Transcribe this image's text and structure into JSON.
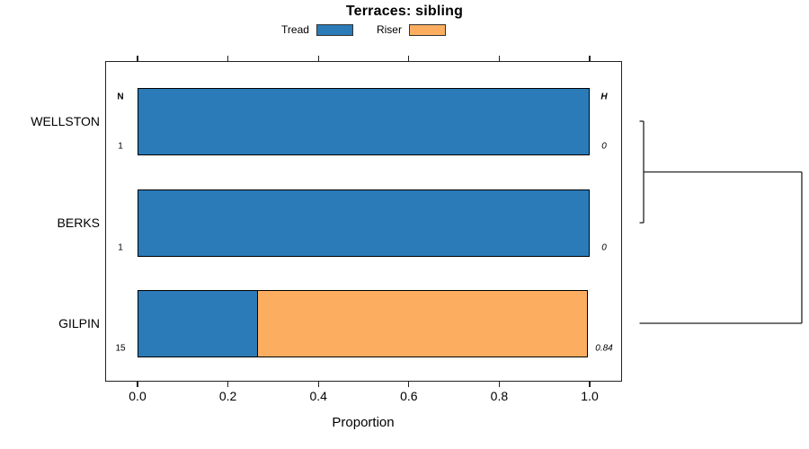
{
  "title": "Terraces: sibling",
  "legend": [
    {
      "label": "Tread",
      "color": "#2B7BB9"
    },
    {
      "label": "Riser",
      "color": "#FCAD60"
    }
  ],
  "columns": {
    "n_header": "N",
    "h_header": "H"
  },
  "axis": {
    "label": "Proportion",
    "tick_labels": [
      "0.0",
      "0.2",
      "0.4",
      "0.6",
      "0.8",
      "1.0"
    ],
    "tick_values": [
      0,
      0.2,
      0.4,
      0.6,
      0.8,
      1.0
    ],
    "range": [
      0,
      1
    ]
  },
  "colors": {
    "tread": "#2B7BB9",
    "riser": "#FCAD60",
    "line": "#222222"
  },
  "chart_data": {
    "type": "bar",
    "orientation": "horizontal",
    "stacked": true,
    "title": "Terraces: sibling",
    "xlabel": "Proportion",
    "xlim": [
      0,
      1
    ],
    "grid": false,
    "legend_position": "top",
    "categories": [
      "WELLSTON",
      "BERKS",
      "GILPIN"
    ],
    "series": [
      {
        "name": "Tread",
        "color": "#2B7BB9",
        "values": [
          1.0,
          1.0,
          0.267
        ]
      },
      {
        "name": "Riser",
        "color": "#FCAD60",
        "values": [
          0.0,
          0.0,
          0.733
        ]
      }
    ],
    "n_values": [
      "1",
      "1",
      "15"
    ],
    "h_values": [
      "0",
      "0",
      "0.84"
    ],
    "dendrogram": {
      "max_height": 0.84,
      "merges": [
        {
          "children": [
            "WELLSTON",
            "BERKS"
          ],
          "height": 0
        },
        {
          "children": [
            "WELLSTON+BERKS",
            "GILPIN"
          ],
          "height": 0.84
        }
      ]
    }
  }
}
